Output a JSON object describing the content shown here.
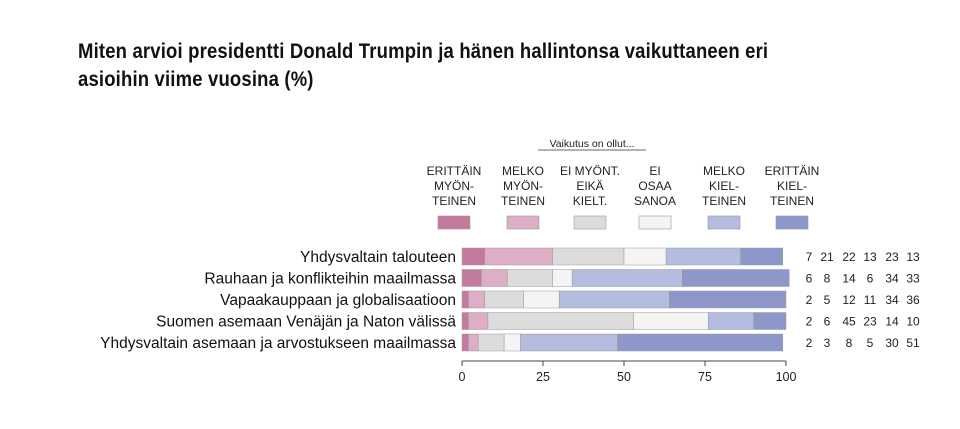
{
  "title": "Miten arvioi presidentti Donald Trumpin ja hänen hallintonsa vaikuttaneen eri asioihin viime vuosina (%)",
  "chart_data": {
    "type": "bar",
    "stacked": true,
    "orientation": "horizontal",
    "legend_title": "Vaikutus on ollut...",
    "categories": [
      "Yhdysvaltain talouteen",
      "Rauhaan ja konflikteihin maailmassa",
      "Vapaakauppaan ja globalisaatioon",
      "Suomen asemaan Venäjän ja Naton välissä",
      "Yhdysvaltain asemaan ja arvostukseen maailmassa"
    ],
    "series": [
      {
        "name": "ERITTÄIN MYÖN- TEINEN",
        "label_lines": [
          "ERITTÄIN",
          "MYÖN-",
          "TEINEN"
        ],
        "color": "#c47a9e",
        "values": [
          7,
          6,
          2,
          2,
          2
        ]
      },
      {
        "name": "MELKO MYÖN- TEINEN",
        "label_lines": [
          "MELKO",
          "MYÖN-",
          "TEINEN"
        ],
        "color": "#ddaec5",
        "values": [
          21,
          8,
          5,
          6,
          3
        ]
      },
      {
        "name": "EI MYÖNT. EIKÄ KIELT.",
        "label_lines": [
          "EI MYÖNT.",
          "EIKÄ",
          "KIELT."
        ],
        "color": "#dcdcdc",
        "values": [
          22,
          14,
          12,
          45,
          8
        ]
      },
      {
        "name": "EI OSAA SANOA",
        "label_lines": [
          "EI",
          "OSAA",
          "SANOA"
        ],
        "color": "#f4f4f4",
        "values": [
          13,
          6,
          11,
          23,
          5
        ]
      },
      {
        "name": "MELKO KIEL- TEINEN",
        "label_lines": [
          "MELKO",
          "KIEL-",
          "TEINEN"
        ],
        "color": "#b4bce0",
        "values": [
          23,
          34,
          34,
          14,
          30
        ]
      },
      {
        "name": "ERITTÄIN KIEL- TEINEN",
        "label_lines": [
          "ERITTÄIN",
          "KIEL-",
          "TEINEN"
        ],
        "color": "#8d97ca",
        "values": [
          13,
          33,
          36,
          10,
          51
        ]
      }
    ],
    "xlim": [
      0,
      100
    ],
    "xticks": [
      0,
      25,
      50,
      75,
      100
    ],
    "show_values_right": true,
    "grid": false,
    "legend_position": "top"
  }
}
